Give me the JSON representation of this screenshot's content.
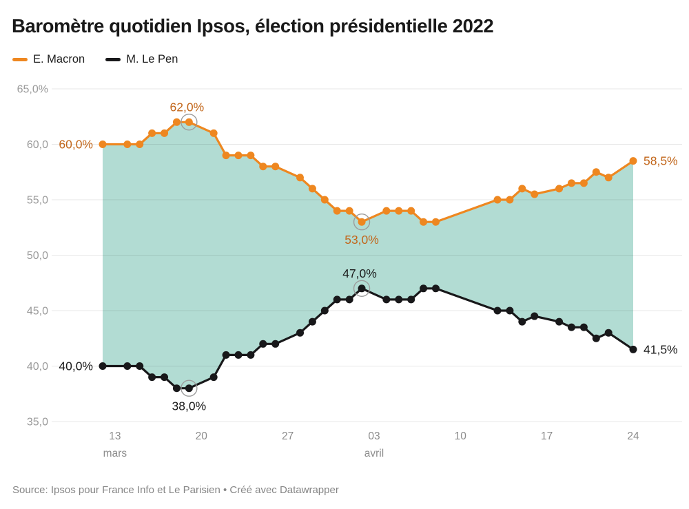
{
  "header": {
    "title": "Baromètre quotidien Ipsos, élection présidentielle 2022"
  },
  "footer": {
    "source": "Source: Ipsos pour France Info et Le Parisien • Créé avec Datawrapper"
  },
  "chart_data": {
    "type": "line",
    "title": "Baromètre quotidien Ipsos, élection présidentielle 2022",
    "x_unit": "days (12 mars – 24 avril 2022, jours sans sondage omis)",
    "x_days": [
      0,
      2,
      3,
      4,
      5,
      6,
      7,
      9,
      10,
      11,
      12,
      13,
      14,
      16,
      17,
      18,
      19,
      20,
      21,
      23,
      24,
      25,
      26,
      27,
      32,
      33,
      34,
      35,
      37,
      38,
      39,
      40,
      41,
      43
    ],
    "x_dates": [
      "12 mars",
      "14 mars",
      "15 mars",
      "16 mars",
      "17 mars",
      "18 mars",
      "19 mars",
      "21 mars",
      "22 mars",
      "23 mars",
      "24 mars",
      "25 mars",
      "26 mars",
      "28 mars",
      "29 mars",
      "30 mars",
      "31 mars",
      "01 avril",
      "02 avril",
      "04 avril",
      "05 avril",
      "06 avril",
      "07 avril",
      "08 avril",
      "13 avril",
      "14 avril",
      "15 avril",
      "16 avril",
      "18 avril",
      "19 avril",
      "20 avril",
      "21 avril",
      "22 avril",
      "24 avril"
    ],
    "series": [
      {
        "name": "E. Macron",
        "color": "#ee8720",
        "values": [
          60,
          60,
          60,
          61,
          61,
          62,
          62,
          61,
          59,
          59,
          59,
          58,
          58,
          57,
          56,
          55,
          54,
          54,
          53,
          54,
          54,
          54,
          53,
          53,
          55,
          55,
          56,
          55.5,
          56,
          56.5,
          56.5,
          57.5,
          57,
          58.5
        ]
      },
      {
        "name": "M. Le Pen",
        "color": "#18181a",
        "values": [
          40,
          40,
          40,
          39,
          39,
          38,
          38,
          39,
          41,
          41,
          41,
          42,
          42,
          43,
          44,
          45,
          46,
          46,
          47,
          46,
          46,
          46,
          47,
          47,
          45,
          45,
          44,
          44.5,
          44,
          43.5,
          43.5,
          42.5,
          43,
          41.5
        ]
      }
    ],
    "ylim": [
      35,
      65
    ],
    "y_ticks": [
      {
        "value": 65,
        "label": "65,0%"
      },
      {
        "value": 60,
        "label": "60,0"
      },
      {
        "value": 55,
        "label": "55,0"
      },
      {
        "value": 50,
        "label": "50,0"
      },
      {
        "value": 45,
        "label": "45,0"
      },
      {
        "value": 40,
        "label": "40,0"
      },
      {
        "value": 35,
        "label": "35,0"
      }
    ],
    "x_ticks": [
      {
        "day": 1,
        "label": "13",
        "sublabel": "mars"
      },
      {
        "day": 8,
        "label": "20",
        "sublabel": ""
      },
      {
        "day": 15,
        "label": "27",
        "sublabel": ""
      },
      {
        "day": 22,
        "label": "03",
        "sublabel": "avril"
      },
      {
        "day": 29,
        "label": "10",
        "sublabel": ""
      },
      {
        "day": 36,
        "label": "17",
        "sublabel": ""
      },
      {
        "day": 43,
        "label": "24",
        "sublabel": ""
      }
    ],
    "annotations": [
      {
        "series": 0,
        "index": 0,
        "text": "60,0%",
        "side": "left",
        "circled": false
      },
      {
        "series": 0,
        "index": 6,
        "text": "62,0%",
        "side": "above",
        "circled": true
      },
      {
        "series": 0,
        "index": 18,
        "text": "53,0%",
        "side": "below",
        "circled": true
      },
      {
        "series": 0,
        "index": 33,
        "text": "58,5%",
        "side": "right",
        "circled": false
      },
      {
        "series": 1,
        "index": 0,
        "text": "40,0%",
        "side": "left",
        "circled": false
      },
      {
        "series": 1,
        "index": 6,
        "text": "38,0%",
        "side": "below",
        "circled": true
      },
      {
        "series": 1,
        "index": 18,
        "text": "47,0%",
        "side": "above",
        "circled": true
      },
      {
        "series": 1,
        "index": 33,
        "text": "41,5%",
        "side": "right",
        "circled": false
      }
    ],
    "label_colors": [
      "#c2661a",
      "#1a1a1a"
    ],
    "area_fill": "#b2dcd3",
    "grid_on": true,
    "legend_position": "top-left",
    "axis_text_color": "#9a9a9a"
  }
}
